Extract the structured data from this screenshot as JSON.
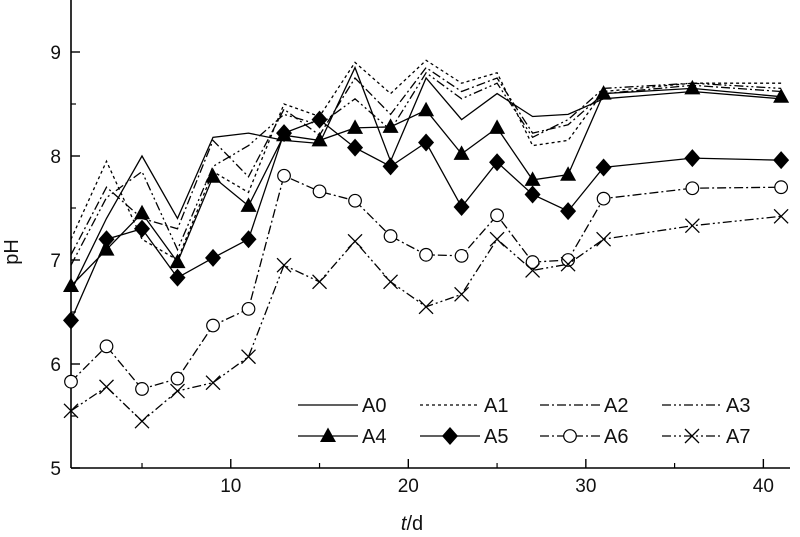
{
  "chart_data": {
    "type": "line",
    "title": "",
    "xlabel": "t",
    "xlabel_unit": "/d",
    "ylabel": "pH",
    "xlim": [
      1,
      41.5
    ],
    "ylim": [
      5,
      9.5
    ],
    "xticks": [
      "10",
      "20",
      "30",
      "40"
    ],
    "yticks": [
      "5",
      "6",
      "7",
      "8",
      "9"
    ],
    "grid": false,
    "legend_position": "bottom-right",
    "x": [
      1,
      3,
      5,
      7,
      9,
      11,
      13,
      15,
      17,
      19,
      21,
      23,
      25,
      27,
      29,
      31,
      36,
      41
    ],
    "series": [
      {
        "name": "A0",
        "line": "solid",
        "marker": "none",
        "values": [
          6.7,
          7.4,
          8.0,
          7.4,
          8.18,
          8.22,
          8.15,
          8.12,
          8.85,
          7.95,
          8.75,
          8.35,
          8.6,
          8.38,
          8.4,
          8.55,
          8.62,
          8.55
        ]
      },
      {
        "name": "A1",
        "line": "dotted",
        "marker": "none",
        "values": [
          7.2,
          7.95,
          7.2,
          7.0,
          7.85,
          7.65,
          8.5,
          8.38,
          8.9,
          8.6,
          8.92,
          8.7,
          8.8,
          8.1,
          8.15,
          8.62,
          8.7,
          8.7
        ]
      },
      {
        "name": "A2",
        "line": "dashdot",
        "marker": "none",
        "values": [
          7.05,
          7.7,
          7.4,
          7.3,
          8.15,
          7.8,
          8.45,
          8.2,
          8.75,
          8.4,
          8.85,
          8.62,
          8.75,
          8.22,
          8.3,
          8.6,
          8.68,
          8.62
        ]
      },
      {
        "name": "A3",
        "line": "dashdotdot",
        "marker": "none",
        "values": [
          6.95,
          7.6,
          7.85,
          7.1,
          7.9,
          8.1,
          8.4,
          8.3,
          8.55,
          8.25,
          8.8,
          8.55,
          8.7,
          8.18,
          8.35,
          8.65,
          8.7,
          8.65
        ]
      },
      {
        "name": "A4",
        "line": "solid",
        "marker": "triangle",
        "values": [
          6.75,
          7.1,
          7.45,
          6.98,
          7.8,
          7.52,
          8.2,
          8.15,
          8.27,
          8.28,
          8.44,
          8.02,
          8.27,
          7.77,
          7.82,
          8.6,
          8.65,
          8.57
        ]
      },
      {
        "name": "A5",
        "line": "solid",
        "marker": "diamond",
        "values": [
          6.42,
          7.2,
          7.3,
          6.83,
          7.02,
          7.2,
          8.22,
          8.35,
          8.08,
          7.9,
          8.13,
          7.51,
          7.94,
          7.63,
          7.47,
          7.89,
          7.98,
          7.96
        ]
      },
      {
        "name": "A6",
        "line": "dashdot",
        "marker": "circle",
        "values": [
          5.83,
          6.17,
          5.76,
          5.86,
          6.37,
          6.53,
          7.81,
          7.66,
          7.57,
          7.23,
          7.05,
          7.04,
          7.43,
          6.98,
          7.0,
          7.59,
          7.69,
          7.7
        ]
      },
      {
        "name": "A7",
        "line": "dashdotdot",
        "marker": "x",
        "values": [
          5.55,
          5.78,
          5.45,
          5.74,
          5.82,
          6.07,
          6.95,
          6.79,
          7.18,
          6.79,
          6.55,
          6.67,
          7.2,
          6.9,
          6.96,
          7.2,
          7.33,
          7.42
        ]
      }
    ]
  }
}
